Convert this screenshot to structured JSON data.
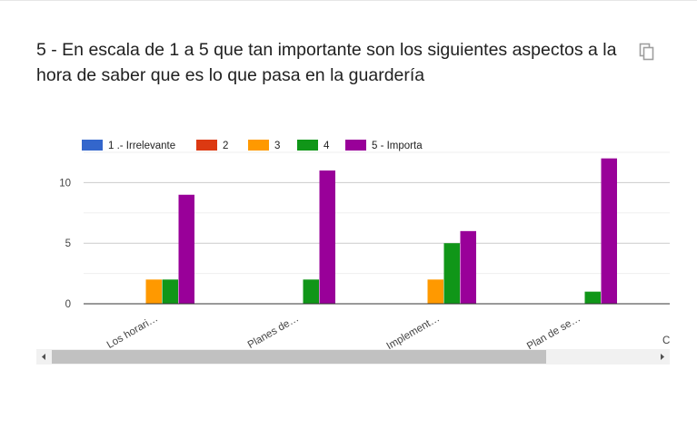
{
  "question": {
    "title": "5 - En escala de 1 a 5 que tan importante son los siguientes aspectos a la hora de saber que es lo que pasa en la guardería"
  },
  "icons": {
    "copy": "copy-icon",
    "scroll_left": "scroll-left-arrow-icon",
    "scroll_right": "scroll-right-arrow-icon"
  },
  "scroll": {
    "thumb_fraction": 0.82,
    "offset_fraction": 0.0
  },
  "chart_data": {
    "type": "bar",
    "title": "",
    "xlabel": "",
    "ylabel": "",
    "ylim": [
      0,
      12.5
    ],
    "yticks": [
      0,
      5,
      10
    ],
    "grid": true,
    "legend_position": "top-left",
    "categories": [
      "Los horari…",
      "Planes de…",
      "Implement…",
      "Plan de se…"
    ],
    "clipped_category_label": "C",
    "series": [
      {
        "name": "1 .- Irrelevante",
        "color": "#3366cc",
        "values": [
          0,
          0,
          0,
          0
        ]
      },
      {
        "name": "2",
        "color": "#dc3912",
        "values": [
          0,
          0,
          0,
          0
        ]
      },
      {
        "name": "3",
        "color": "#ff9900",
        "values": [
          2,
          0,
          2,
          0
        ]
      },
      {
        "name": "4",
        "color": "#109618",
        "values": [
          2,
          2,
          5,
          1
        ]
      },
      {
        "name": "5 - Importa",
        "color": "#990099",
        "values": [
          9,
          11,
          6,
          12
        ]
      }
    ]
  }
}
